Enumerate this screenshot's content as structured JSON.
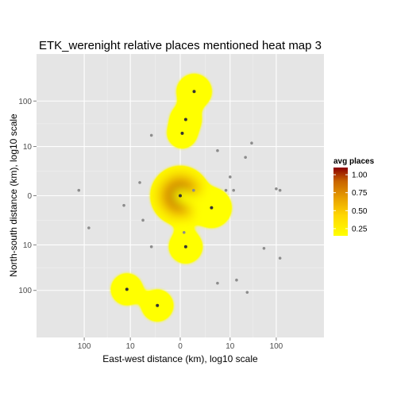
{
  "chart_data": {
    "type": "heatmap",
    "title": "ETK_werenight relative places mentioned heat map 3",
    "xlabel": "East-west distance (km), log10 scale",
    "ylabel": "North-south distance (km), log10 scale",
    "x_scale": "signed log10",
    "y_scale": "signed log10",
    "xlim": [
      -1000,
      1000
    ],
    "ylim": [
      -1000,
      1000
    ],
    "x_ticks": [
      -100,
      -10,
      0,
      10,
      100
    ],
    "x_tick_labels": [
      "100",
      "10",
      "0",
      "10",
      "100"
    ],
    "y_ticks": [
      100,
      10,
      0,
      -10,
      -100
    ],
    "y_tick_labels": [
      "100",
      "10",
      "0",
      "10",
      "100"
    ],
    "grid": true,
    "panel_background": "#e5e5e5",
    "legend": {
      "title": "avg places",
      "position": "right",
      "breaks": [
        1.0,
        0.75,
        0.5,
        0.25
      ],
      "labels": [
        "1.00",
        "0.75",
        "0.50",
        "0.25"
      ],
      "range": [
        0.15,
        1.1
      ],
      "colors": [
        "#ffff00",
        "#ffd700",
        "#e8a000",
        "#c86400",
        "#8b0000"
      ]
    },
    "points": [
      {
        "x": 0,
        "y": 0,
        "value": 1.1
      },
      {
        "x": 0.95,
        "y": 160,
        "value": 0.35
      },
      {
        "x": 0.3,
        "y": 40,
        "value": 0.25
      },
      {
        "x": 0.1,
        "y": 20,
        "value": 0.2
      },
      {
        "x": 3.5,
        "y": -0.8,
        "value": 0.5
      },
      {
        "x": 0.3,
        "y": -11,
        "value": 0.3
      },
      {
        "x": 0.2,
        "y": -5,
        "value": 0.15
      },
      {
        "x": -12,
        "y": -95,
        "value": 0.25
      },
      {
        "x": -2,
        "y": -210,
        "value": 0.25
      },
      {
        "x": 120,
        "y": 0.3,
        "value": 0.15
      },
      {
        "x": -3,
        "y": 18,
        "value": 0.15
      },
      {
        "x": -6,
        "y": 0.9,
        "value": 0.15
      },
      {
        "x": -14,
        "y": -0.6,
        "value": 0.15
      },
      {
        "x": -5,
        "y": -2.3,
        "value": 0.15
      },
      {
        "x": -130,
        "y": 0.3,
        "value": 0.15
      },
      {
        "x": -80,
        "y": -3.8,
        "value": 0.15
      },
      {
        "x": -3,
        "y": -11,
        "value": 0.15
      },
      {
        "x": 0.9,
        "y": 0.3,
        "value": 0.15
      },
      {
        "x": 5,
        "y": 8,
        "value": 0.15
      },
      {
        "x": 8,
        "y": 0.3,
        "value": 0.15
      },
      {
        "x": 10,
        "y": 1.5,
        "value": 0.15
      },
      {
        "x": 12,
        "y": 0.3,
        "value": 0.15
      },
      {
        "x": 22,
        "y": 5.5,
        "value": 0.15
      },
      {
        "x": 30,
        "y": 12,
        "value": 0.15
      },
      {
        "x": 100,
        "y": 0.4,
        "value": 0.15
      },
      {
        "x": 55,
        "y": -12,
        "value": 0.15
      },
      {
        "x": 120,
        "y": -20,
        "value": 0.15
      },
      {
        "x": 5,
        "y": -70,
        "value": 0.15
      },
      {
        "x": 14,
        "y": -60,
        "value": 0.15
      },
      {
        "x": 24,
        "y": -110,
        "value": 0.15
      }
    ]
  }
}
